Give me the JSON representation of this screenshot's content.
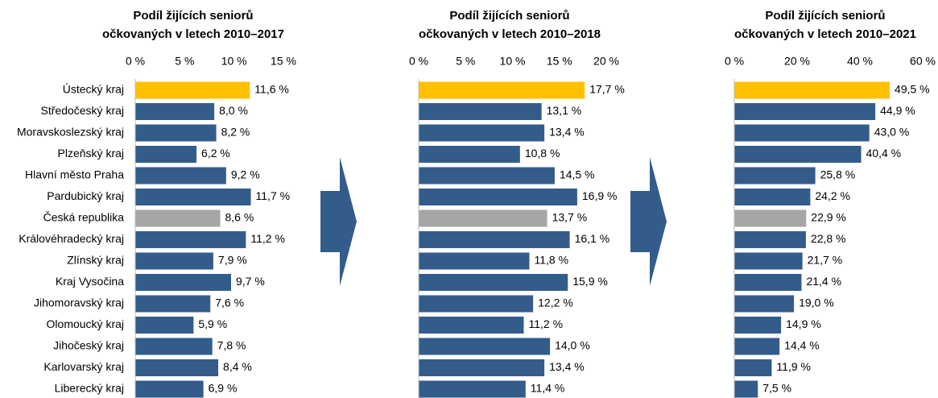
{
  "chart_data": [
    {
      "type": "bar",
      "orientation": "horizontal",
      "title": [
        "Podíl žijících seniorů",
        "očkovaných v letech 2010–2017"
      ],
      "categories": [
        "Ústecký kraj",
        "Středočeský kraj",
        "Moravskoslezský kraj",
        "Plzeňský kraj",
        "Hlavní město Praha",
        "Pardubický kraj",
        "Česká republika",
        "Královéhradecký kraj",
        "Zlínský kraj",
        "Kraj Vysočina",
        "Jihomoravský kraj",
        "Olomoucký kraj",
        "Jihočeský kraj",
        "Karlovarský kraj",
        "Liberecký kraj"
      ],
      "values": [
        11.6,
        8.0,
        8.2,
        6.2,
        9.2,
        11.7,
        8.6,
        11.2,
        7.9,
        9.7,
        7.6,
        5.9,
        7.8,
        8.4,
        6.9
      ],
      "value_labels": [
        "11,6 %",
        "8,0 %",
        "8,2 %",
        "6,2 %",
        "9,2 %",
        "11,7 %",
        "8,6 %",
        "11,2 %",
        "7,9 %",
        "9,7 %",
        "7,6 %",
        "5,9 %",
        "7,8 %",
        "8,4 %",
        "6,9 %"
      ],
      "colors": [
        "#FFC000",
        "#335C8A",
        "#335C8A",
        "#335C8A",
        "#335C8A",
        "#335C8A",
        "#A6A6A6",
        "#335C8A",
        "#335C8A",
        "#335C8A",
        "#335C8A",
        "#335C8A",
        "#335C8A",
        "#335C8A",
        "#335C8A"
      ],
      "xlim": [
        0,
        15
      ],
      "xticks": [
        {
          "value": 0,
          "label": "0 %"
        },
        {
          "value": 5,
          "label": "5 %"
        },
        {
          "value": 10,
          "label": "10 %"
        },
        {
          "value": 15,
          "label": "15 %"
        }
      ],
      "grid": false
    },
    {
      "type": "bar",
      "orientation": "horizontal",
      "title": [
        "Podíl žijících seniorů",
        "očkovaných v letech 2010–2018"
      ],
      "values": [
        17.7,
        13.1,
        13.4,
        10.8,
        14.5,
        16.9,
        13.7,
        16.1,
        11.8,
        15.9,
        12.2,
        11.2,
        14.0,
        13.4,
        11.4
      ],
      "value_labels": [
        "17,7 %",
        "13,1 %",
        "13,4 %",
        "10,8 %",
        "14,5 %",
        "16,9 %",
        "13,7 %",
        "16,1 %",
        "11,8 %",
        "15,9 %",
        "12,2 %",
        "11,2 %",
        "14,0 %",
        "13,4 %",
        "11,4 %"
      ],
      "colors": [
        "#FFC000",
        "#335C8A",
        "#335C8A",
        "#335C8A",
        "#335C8A",
        "#335C8A",
        "#A6A6A6",
        "#335C8A",
        "#335C8A",
        "#335C8A",
        "#335C8A",
        "#335C8A",
        "#335C8A",
        "#335C8A",
        "#335C8A"
      ],
      "xlim": [
        0,
        20
      ],
      "xticks": [
        {
          "value": 0,
          "label": "0 %"
        },
        {
          "value": 5,
          "label": "5 %"
        },
        {
          "value": 10,
          "label": "10 %"
        },
        {
          "value": 15,
          "label": "15 %"
        },
        {
          "value": 20,
          "label": "20 %"
        }
      ],
      "grid": false
    },
    {
      "type": "bar",
      "orientation": "horizontal",
      "title": [
        "Podíl žijících seniorů",
        "očkovaných v letech 2010–2021"
      ],
      "values": [
        49.5,
        44.9,
        43.0,
        40.4,
        25.8,
        24.2,
        22.9,
        22.8,
        21.7,
        21.4,
        19.0,
        14.9,
        14.4,
        11.9,
        7.5
      ],
      "value_labels": [
        "49,5 %",
        "44,9 %",
        "43,0 %",
        "40,4 %",
        "25,8 %",
        "24,2 %",
        "22,9 %",
        "22,8 %",
        "21,7 %",
        "21,4 %",
        "19,0 %",
        "14,9 %",
        "14,4 %",
        "11,9 %",
        "7,5 %"
      ],
      "colors": [
        "#FFC000",
        "#335C8A",
        "#335C8A",
        "#335C8A",
        "#335C8A",
        "#335C8A",
        "#A6A6A6",
        "#335C8A",
        "#335C8A",
        "#335C8A",
        "#335C8A",
        "#335C8A",
        "#335C8A",
        "#335C8A",
        "#335C8A"
      ],
      "xlim": [
        0,
        60
      ],
      "xticks": [
        {
          "value": 0,
          "label": "0 %"
        },
        {
          "value": 20,
          "label": "20 %"
        },
        {
          "value": 40,
          "label": "40 %"
        },
        {
          "value": 60,
          "label": "60 %"
        }
      ],
      "grid": false
    }
  ]
}
